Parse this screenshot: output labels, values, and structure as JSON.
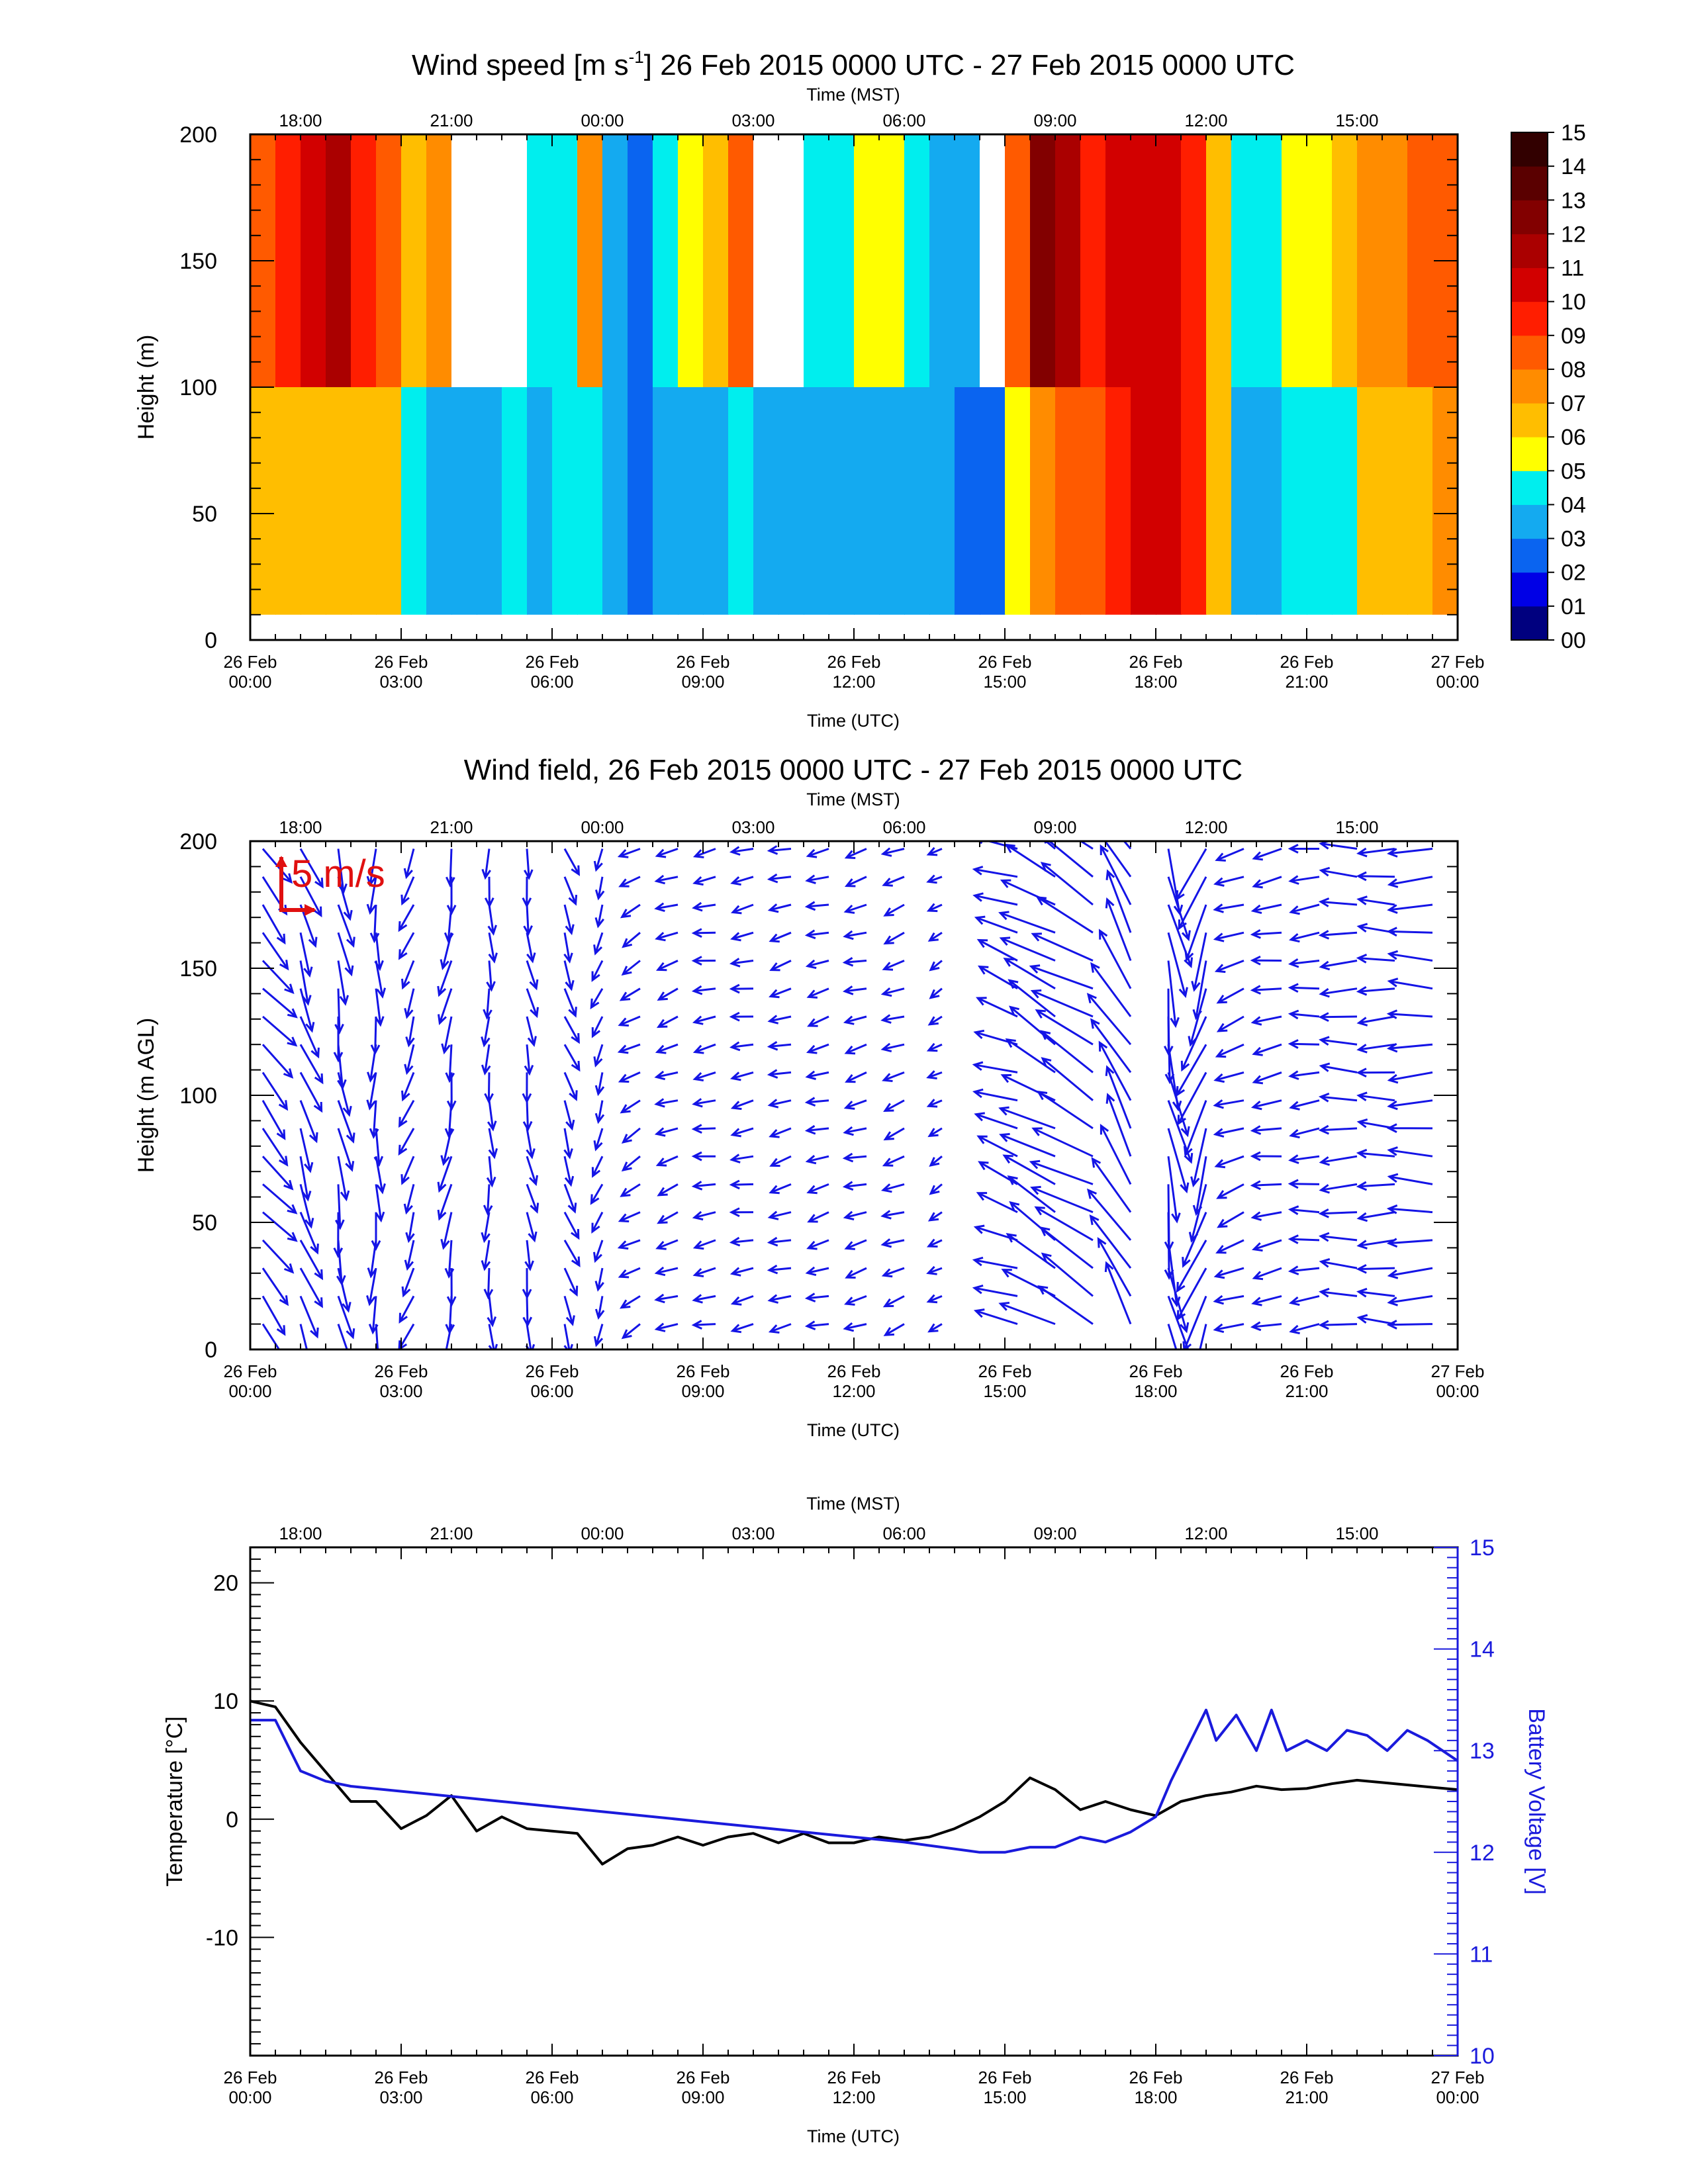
{
  "panels": {
    "speed": {
      "title_pre": "Wind speed [m s",
      "title_sup": "-1",
      "title_post": "] 26 Feb 2015 0000 UTC - 27 Feb 2015 0000 UTC",
      "ylabel": "Height (m)"
    },
    "field": {
      "title": "Wind field, 26 Feb 2015 0000 UTC - 27 Feb 2015 0000 UTC",
      "ylabel": "Height (m AGL)",
      "scale_label": "5 m/s"
    },
    "temp": {
      "ylabel_left": "Temperature [°C]",
      "ylabel_right": "Battery Voltage [V]"
    }
  },
  "axes": {
    "xlabel_bottom": "Time (UTC)",
    "xlabel_top": "Time (MST)",
    "bottom_ticks": [
      {
        "l1": "26 Feb",
        "l2": "00:00"
      },
      {
        "l1": "26 Feb",
        "l2": "03:00"
      },
      {
        "l1": "26 Feb",
        "l2": "06:00"
      },
      {
        "l1": "26 Feb",
        "l2": "09:00"
      },
      {
        "l1": "26 Feb",
        "l2": "12:00"
      },
      {
        "l1": "26 Feb",
        "l2": "15:00"
      },
      {
        "l1": "26 Feb",
        "l2": "18:00"
      },
      {
        "l1": "26 Feb",
        "l2": "21:00"
      },
      {
        "l1": "27 Feb",
        "l2": "00:00"
      }
    ],
    "top_ticks": [
      "18:00",
      "21:00",
      "00:00",
      "03:00",
      "06:00",
      "09:00",
      "12:00",
      "15:00"
    ],
    "height_ticks": [
      "0",
      "50",
      "100",
      "150",
      "200"
    ],
    "temp_ticks": [
      "-10",
      "0",
      "10",
      "20"
    ],
    "volt_ticks": [
      "10",
      "11",
      "12",
      "13",
      "14",
      "15"
    ]
  },
  "colors": {
    "arrow": "#1414e6",
    "scale": "#e01010",
    "voltage": "#1a1adc",
    "temperature": "#000000"
  },
  "chart_data": [
    {
      "type": "heatmap",
      "title": "Wind speed [m s-1] 26 Feb 2015 0000 UTC - 27 Feb 2015 0000 UTC",
      "xlabel": "Time (UTC)",
      "ylabel": "Height (m)",
      "xlim": [
        0,
        24
      ],
      "ylim": [
        0,
        200
      ],
      "colorbar": {
        "labels": [
          "00",
          "01",
          "02",
          "03",
          "04",
          "05",
          "06",
          "07",
          "08",
          "09",
          "10",
          "11",
          "12",
          "13",
          "14",
          "15"
        ],
        "colors": [
          "#00007f",
          "#0000e6",
          "#0a64f0",
          "#14aaf0",
          "#00eeee",
          "#ffff00",
          "#ffbe00",
          "#ff8c00",
          "#ff5a00",
          "#ff1e00",
          "#d20000",
          "#aa0000",
          "#820000",
          "#5a0000",
          "#320000"
        ]
      },
      "column_times_utc_h": [
        0,
        0.5,
        1,
        1.5,
        2,
        2.5,
        3,
        3.5,
        4,
        4.5,
        5,
        5.5,
        6,
        6.5,
        7,
        7.5,
        8,
        8.5,
        9,
        9.5,
        10,
        10.5,
        11,
        11.5,
        12,
        12.5,
        13,
        13.5,
        14,
        14.5,
        15,
        15.5,
        16,
        16.5,
        17,
        17.5,
        18,
        18.5,
        19,
        19.5,
        20,
        20.5,
        21,
        21.5,
        22,
        22.5,
        23,
        23.5
      ],
      "speed_lower_ms": [
        6,
        6,
        6,
        6,
        6,
        6,
        4,
        3,
        3,
        3,
        4,
        3,
        4,
        4,
        3,
        2,
        3,
        3,
        3,
        4,
        3,
        3,
        3,
        3,
        3,
        3,
        3,
        3,
        2,
        2,
        5,
        7,
        8,
        8,
        9,
        10,
        10,
        9,
        6,
        3,
        3,
        4,
        4,
        4,
        6,
        6,
        6,
        7
      ],
      "speed_upper_ms": [
        8,
        9,
        10,
        11,
        9,
        8,
        6,
        7,
        0,
        0,
        0,
        4,
        4,
        7,
        3,
        2,
        4,
        5,
        6,
        8,
        0,
        0,
        4,
        4,
        5,
        5,
        4,
        3,
        3,
        0,
        8,
        12,
        11,
        9,
        10,
        10,
        10,
        9,
        6,
        4,
        4,
        5,
        5,
        6,
        7,
        7,
        8,
        8
      ]
    },
    {
      "type": "scatter",
      "title": "Wind field, 26 Feb 2015 0000 UTC - 27 Feb 2015 0000 UTC",
      "xlabel": "Time (UTC)",
      "ylabel": "Height (m AGL)",
      "xlim": [
        0,
        24
      ],
      "ylim": [
        0,
        200
      ],
      "reference_vector": "5 m/s",
      "times_utc_h": [
        0.25,
        1.0,
        1.75,
        2.5,
        3.25,
        4.0,
        4.75,
        5.5,
        6.25,
        7.0,
        7.75,
        8.5,
        9.25,
        10.0,
        10.75,
        11.5,
        12.25,
        13.0,
        13.75,
        14.5,
        15.25,
        16.0,
        16.75,
        17.5,
        18.25,
        19.0,
        19.75,
        20.5,
        21.25,
        22.0,
        22.75,
        23.5
      ],
      "direction_to_deg": [
        140,
        160,
        170,
        180,
        200,
        190,
        180,
        170,
        160,
        200,
        240,
        250,
        260,
        260,
        255,
        255,
        255,
        250,
        240,
        0,
        290,
        300,
        300,
        330,
        170,
        200,
        250,
        260,
        265,
        270,
        270,
        270
      ],
      "speed_ms": [
        6,
        6,
        6,
        5,
        4,
        5,
        4,
        4,
        4,
        3,
        3,
        3,
        3,
        3,
        3,
        3,
        3,
        3,
        2,
        0,
        6,
        8,
        9,
        9,
        9,
        8,
        4,
        4,
        4,
        5,
        5,
        6
      ]
    },
    {
      "type": "line",
      "xlabel": "Time (UTC)",
      "ylabel": "Temperature [°C]",
      "y2label": "Battery Voltage [V]",
      "xlim": [
        0,
        24
      ],
      "ylim": [
        -20,
        23
      ],
      "y2lim": [
        10,
        15
      ],
      "series": [
        {
          "name": "Temperature [°C]",
          "color": "#000000",
          "axis": "left",
          "x": [
            0,
            0.5,
            1.0,
            1.5,
            2.0,
            2.5,
            3.0,
            3.5,
            4.0,
            4.5,
            5.0,
            5.5,
            6.0,
            6.5,
            7.0,
            7.5,
            8.0,
            8.5,
            9.0,
            9.5,
            10.0,
            10.5,
            11.0,
            11.5,
            12.0,
            12.5,
            13.0,
            13.5,
            14.0,
            14.5,
            15.0,
            15.5,
            16.0,
            16.5,
            17.0,
            17.5,
            18.0,
            18.5,
            19.0,
            19.5,
            20.0,
            20.5,
            21.0,
            21.5,
            22.0,
            22.5,
            23.0,
            23.5,
            24.0
          ],
          "values": [
            10.0,
            9.5,
            6.5,
            4.0,
            1.5,
            1.5,
            -0.8,
            0.3,
            2.0,
            -1.0,
            0.2,
            -0.8,
            -1.0,
            -1.2,
            -3.8,
            -2.5,
            -2.2,
            -1.5,
            -2.2,
            -1.5,
            -1.2,
            -2.0,
            -1.2,
            -2.0,
            -2.0,
            -1.5,
            -1.8,
            -1.5,
            -0.8,
            0.2,
            1.5,
            3.5,
            2.5,
            0.8,
            1.5,
            0.8,
            0.3,
            1.5,
            2.0,
            2.3,
            2.8,
            2.5,
            2.6,
            3.0,
            3.3,
            3.1,
            2.9,
            2.7,
            2.5
          ]
        },
        {
          "name": "Battery Voltage [V]",
          "color": "#1a1adc",
          "axis": "right",
          "x": [
            0,
            0.5,
            0.8,
            1.0,
            1.5,
            2.0,
            3.0,
            5.0,
            7.0,
            9.0,
            11.0,
            13.0,
            14.5,
            15.0,
            15.5,
            16.0,
            16.5,
            17.0,
            17.5,
            18.0,
            18.3,
            18.7,
            19.0,
            19.2,
            19.6,
            20.0,
            20.3,
            20.6,
            21.0,
            21.4,
            21.8,
            22.2,
            22.6,
            23.0,
            23.4,
            24.0
          ],
          "values": [
            13.3,
            13.3,
            13.0,
            12.8,
            12.7,
            12.65,
            12.6,
            12.5,
            12.4,
            12.3,
            12.2,
            12.1,
            12.0,
            12.0,
            12.05,
            12.05,
            12.15,
            12.1,
            12.2,
            12.35,
            12.7,
            13.1,
            13.4,
            13.1,
            13.35,
            13.0,
            13.4,
            13.0,
            13.1,
            13.0,
            13.2,
            13.15,
            13.0,
            13.2,
            13.1,
            12.9
          ]
        }
      ]
    }
  ]
}
